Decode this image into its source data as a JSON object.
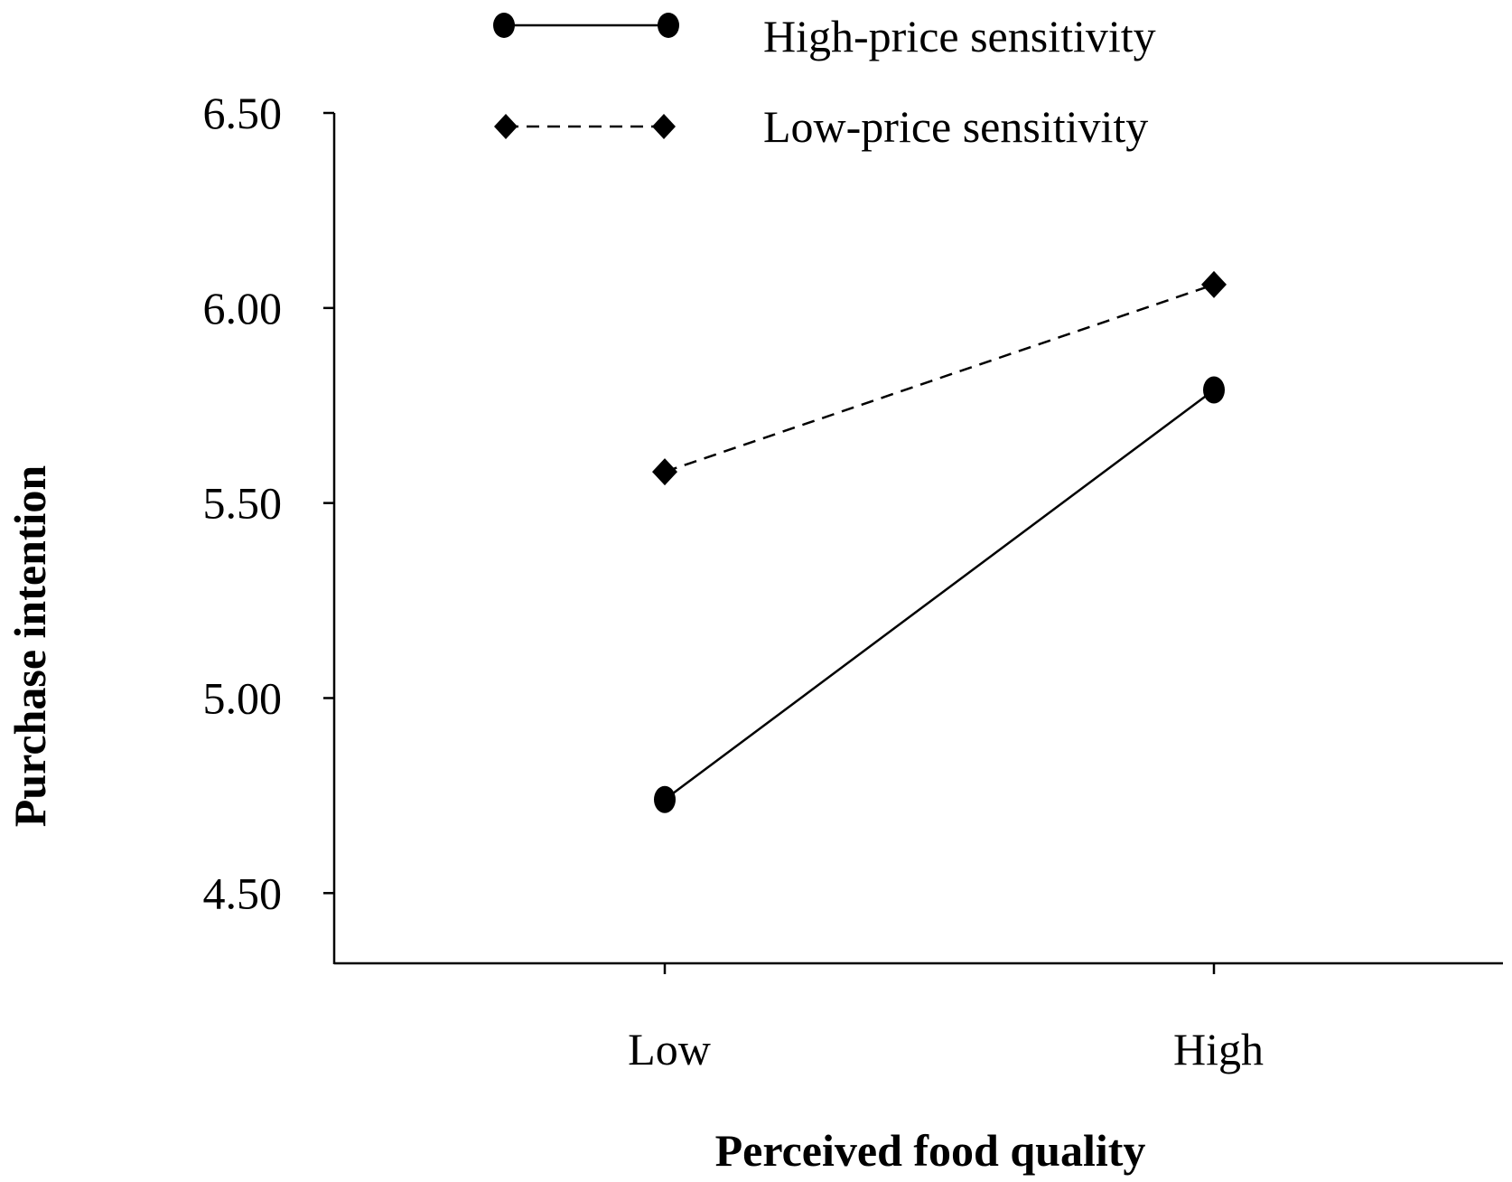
{
  "chart_data": {
    "type": "line",
    "title": "",
    "xlabel": "Perceived food quality",
    "ylabel": "Purchase intention",
    "categories": [
      "Low",
      "High"
    ],
    "ylim": [
      4.32,
      6.5
    ],
    "yticks": [
      4.5,
      5.0,
      5.5,
      6.0,
      6.5
    ],
    "ytick_labels": [
      "4.50",
      "5.00",
      "5.50",
      "6.00",
      "6.50"
    ],
    "grid": false,
    "legend_position": "top",
    "series": [
      {
        "name": "High-price sensitivity",
        "values": [
          4.74,
          5.79
        ],
        "marker": "circle",
        "line": "solid",
        "color": "#000000"
      },
      {
        "name": "Low-price sensitivity",
        "values": [
          5.58,
          6.06
        ],
        "marker": "diamond",
        "line": "dashed",
        "color": "#000000"
      }
    ]
  }
}
